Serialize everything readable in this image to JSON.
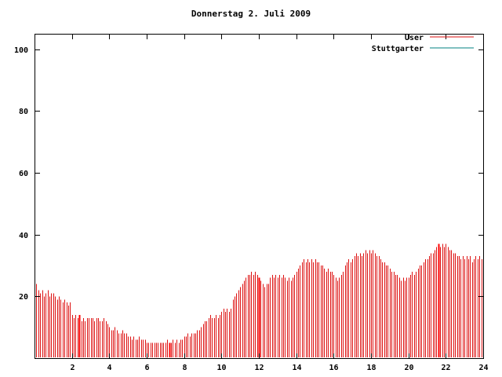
{
  "title": "Donnerstag 2. Juli 2009",
  "legend": {
    "entries": [
      {
        "label": "User",
        "color": "#dd1111"
      },
      {
        "label": "Stuttgarter",
        "color": "#008080"
      }
    ]
  },
  "axes": {
    "x_ticks": [
      2,
      4,
      6,
      8,
      10,
      12,
      14,
      16,
      18,
      20,
      22,
      24
    ],
    "y_ticks": [
      20,
      40,
      60,
      80,
      100
    ],
    "frame_color": "#000000",
    "background_color": "#ffffff"
  },
  "chart_data": {
    "type": "bar",
    "style": "impulses",
    "title": "Donnerstag 2. Juli 2009",
    "xlabel": "",
    "ylabel": "",
    "xlim": [
      0,
      24
    ],
    "ylim": [
      0,
      105
    ],
    "grid": false,
    "legend_position": "top-right",
    "x_start": 0,
    "x_step": 0.1,
    "series": [
      {
        "name": "User",
        "color": "#dd1111",
        "values": [
          23,
          24,
          22,
          21,
          22,
          20,
          21,
          22,
          20,
          21,
          21,
          20,
          19,
          20,
          19,
          18,
          19,
          18,
          17,
          18,
          14,
          13,
          14,
          13,
          14,
          12,
          13,
          12,
          13,
          13,
          13,
          13,
          12,
          13,
          13,
          12,
          12,
          13,
          12,
          11,
          10,
          9,
          9,
          10,
          9,
          8,
          8,
          9,
          8,
          8,
          7,
          7,
          6,
          7,
          6,
          6,
          7,
          6,
          6,
          6,
          5,
          5,
          5,
          5,
          5,
          5,
          5,
          5,
          5,
          5,
          5,
          6,
          5,
          5,
          6,
          5,
          6,
          5,
          6,
          6,
          7,
          7,
          8,
          7,
          8,
          8,
          8,
          9,
          9,
          10,
          11,
          12,
          12,
          13,
          14,
          13,
          13,
          14,
          13,
          14,
          15,
          16,
          15,
          16,
          15,
          16,
          19,
          20,
          21,
          22,
          23,
          24,
          25,
          26,
          27,
          27,
          28,
          27,
          28,
          27,
          26,
          25,
          24,
          23,
          24,
          24,
          26,
          27,
          26,
          27,
          26,
          27,
          26,
          27,
          26,
          25,
          26,
          25,
          26,
          27,
          28,
          29,
          30,
          31,
          32,
          31,
          32,
          31,
          32,
          31,
          32,
          31,
          31,
          30,
          30,
          29,
          28,
          29,
          28,
          28,
          27,
          26,
          25,
          26,
          27,
          28,
          30,
          31,
          32,
          31,
          32,
          33,
          34,
          33,
          34,
          33,
          34,
          35,
          34,
          35,
          34,
          35,
          34,
          33,
          33,
          32,
          31,
          31,
          30,
          30,
          29,
          28,
          28,
          27,
          27,
          26,
          25,
          26,
          25,
          26,
          26,
          27,
          28,
          27,
          28,
          29,
          30,
          30,
          31,
          32,
          32,
          33,
          34,
          34,
          35,
          36,
          37,
          36,
          37,
          36,
          37,
          36,
          35,
          35,
          34,
          34,
          33,
          33,
          32,
          33,
          32,
          33,
          32,
          33,
          31,
          32,
          33,
          32,
          33,
          32
        ]
      },
      {
        "name": "Stuttgarter",
        "color": "#008080",
        "values": []
      }
    ],
    "accent_x": [
      2.4,
      7.2,
      12.0,
      21.6
    ],
    "accent_color": "#ff0000"
  }
}
